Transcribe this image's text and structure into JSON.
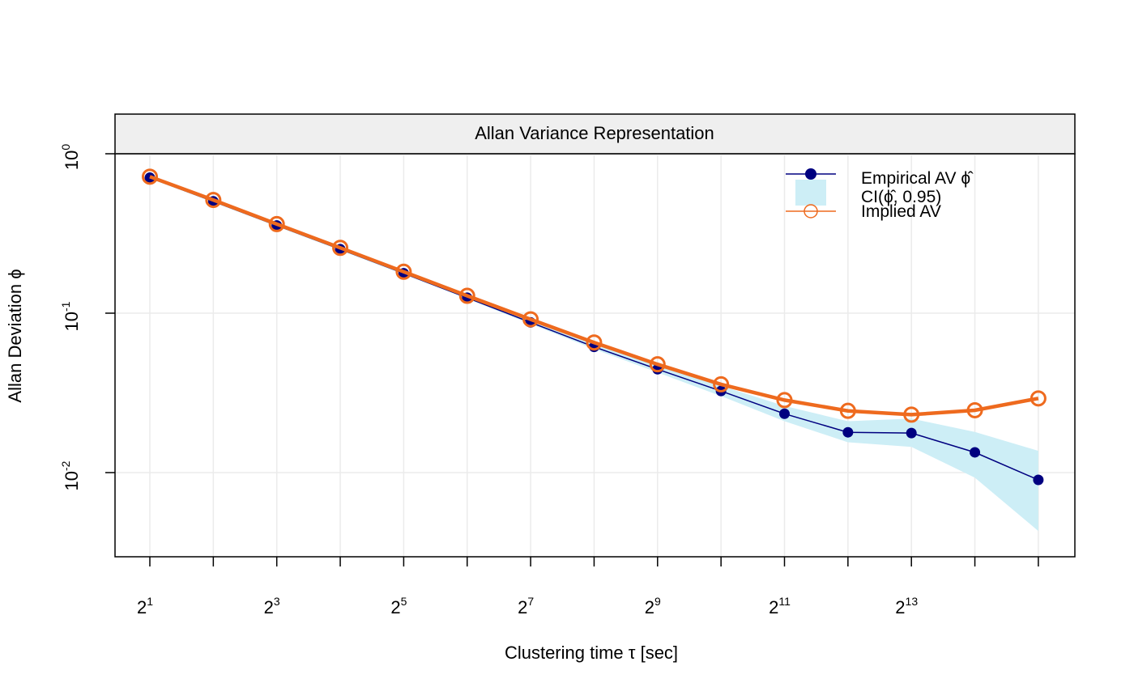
{
  "chart_data": {
    "type": "line",
    "title": "Allan Variance Representation",
    "xlabel": "Clustering time τ [sec]",
    "ylabel": "Allan Deviation ϕ",
    "x_scale": "log2",
    "y_scale": "log10",
    "ylim": [
      0.0045,
      1.0
    ],
    "x_ticks": [
      {
        "value": 2,
        "base": "2",
        "exp": "1"
      },
      {
        "value": 8,
        "base": "2",
        "exp": "3"
      },
      {
        "value": 32,
        "base": "2",
        "exp": "5"
      },
      {
        "value": 128,
        "base": "2",
        "exp": "7"
      },
      {
        "value": 512,
        "base": "2",
        "exp": "9"
      },
      {
        "value": 2048,
        "base": "2",
        "exp": "11"
      },
      {
        "value": 8192,
        "base": "2",
        "exp": "13"
      }
    ],
    "y_ticks": [
      {
        "value": 1,
        "base": "10",
        "exp": "0"
      },
      {
        "value": 0.1,
        "base": "10",
        "exp": "-1"
      },
      {
        "value": 0.01,
        "base": "10",
        "exp": "-2"
      }
    ],
    "x": [
      2,
      4,
      8,
      16,
      32,
      64,
      128,
      256,
      512,
      1024,
      2048,
      4096,
      8192,
      16384,
      32768
    ],
    "series": [
      {
        "name": "Empirical AV",
        "color": "#000080",
        "marker": "filled-circle",
        "values": [
          0.708,
          0.503,
          0.355,
          0.252,
          0.178,
          0.125,
          0.0875,
          0.0615,
          0.0445,
          0.0325,
          0.0234,
          0.0179,
          0.0177,
          0.0134,
          0.009
        ]
      },
      {
        "name": "Implied AV",
        "color": "#ee6a1e",
        "marker": "open-circle",
        "values": [
          0.718,
          0.513,
          0.362,
          0.257,
          0.182,
          0.1285,
          0.0915,
          0.0655,
          0.0478,
          0.0358,
          0.0285,
          0.0244,
          0.0231,
          0.0246,
          0.0292
        ]
      }
    ],
    "confidence_interval": {
      "name": "CI",
      "level": "0.95",
      "color": "#cdeef6",
      "lower": [
        0.698,
        0.496,
        0.35,
        0.248,
        0.175,
        0.123,
        0.0855,
        0.0595,
        0.0425,
        0.0302,
        0.021,
        0.0155,
        0.0145,
        0.0093,
        0.0043
      ],
      "upper": [
        0.718,
        0.51,
        0.36,
        0.256,
        0.181,
        0.127,
        0.0895,
        0.064,
        0.047,
        0.035,
        0.0262,
        0.021,
        0.0218,
        0.018,
        0.0137
      ]
    },
    "legend": {
      "placement": "top-right",
      "entries": [
        "Empirical AV ϕ̂",
        "CI(ϕ̂, 0.95)",
        "Implied AV"
      ]
    },
    "grid": true
  }
}
